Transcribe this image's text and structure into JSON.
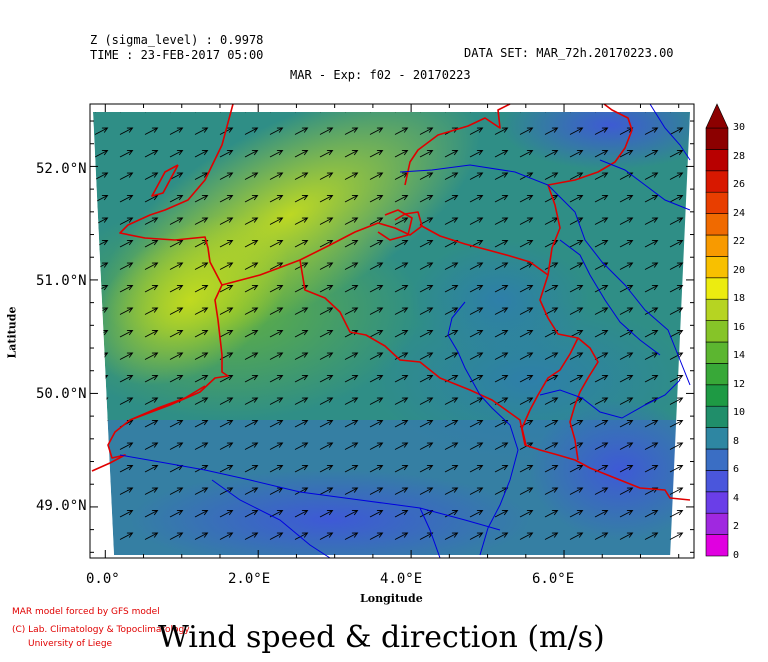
{
  "header": {
    "line1": "Z (sigma_level) : 0.9978",
    "line2": "TIME : 23-FEB-2017 05:00",
    "dataset": "DATA SET: MAR_72h.20170223.00",
    "title": "MAR - Exp: f02 - 20170223"
  },
  "axes": {
    "xlabel": "Longitude",
    "ylabel": "Latitude",
    "xticks": [
      "0.0°",
      "2.0°E",
      "4.0°E",
      "6.0°E"
    ],
    "yticks": [
      "52.0°N",
      "51.0°N",
      "50.0°N",
      "49.0°N"
    ],
    "xrange": [
      -0.2,
      7.7
    ],
    "yrange": [
      48.55,
      52.55
    ]
  },
  "colorbar": {
    "ticks": [
      "30",
      "28",
      "26",
      "24",
      "22",
      "20",
      "18",
      "16",
      "14",
      "12",
      "10",
      "8",
      "6",
      "4",
      "2",
      "0"
    ],
    "colors": [
      "#e000e0",
      "#a028e0",
      "#6a3ee8",
      "#4a56dc",
      "#3a6ec4",
      "#2e86a2",
      "#208e6a",
      "#1e9a44",
      "#38a838",
      "#5cb630",
      "#86c428",
      "#b6d422",
      "#ecec10",
      "#f8c000",
      "#f89a00",
      "#f06a00",
      "#e83e00",
      "#d81800",
      "#b80000",
      "#8c0000"
    ]
  },
  "credits": {
    "line1": "MAR model forced by GFS model",
    "line2": "(C) Lab. Climatology & Topoclimatology",
    "line3": "University of Liege"
  },
  "bottom_title": "Wind speed & direction (m/s)"
}
